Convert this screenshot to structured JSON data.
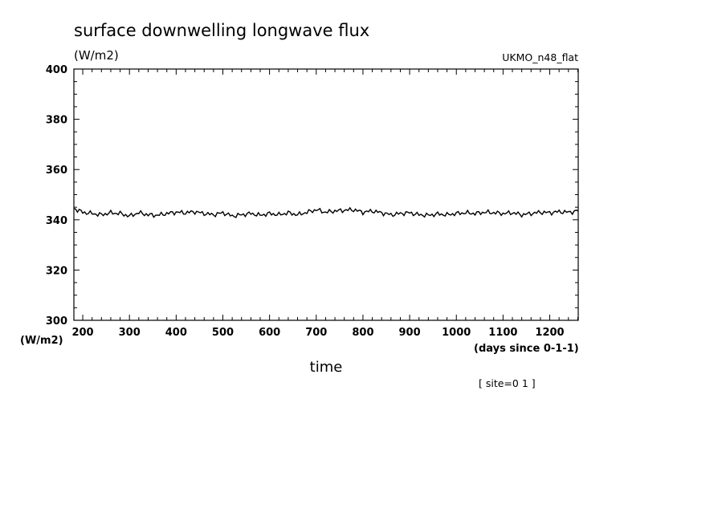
{
  "chart_data": {
    "type": "line",
    "title": "surface downwelling longwave flux",
    "units": "(W/m2)",
    "ylabel": "(W/m2)",
    "dataset": "UKMO_n48_flat",
    "xlabel": "time",
    "xunits": "(days since 0-1-1)",
    "site_label": "[ site=0 1 ]",
    "xlim": [
      181,
      1261
    ],
    "ylim": [
      300,
      400
    ],
    "x_ticks": [
      200,
      300,
      400,
      500,
      600,
      700,
      800,
      900,
      1000,
      1100,
      1200
    ],
    "y_ticks": [
      300,
      320,
      340,
      360,
      380,
      400
    ],
    "grid": false,
    "series": [
      {
        "x": [
          181,
          200,
          220,
          240,
          260,
          280,
          300,
          320,
          340,
          360,
          380,
          400,
          420,
          440,
          460,
          480,
          500,
          520,
          540,
          560,
          580,
          600,
          620,
          640,
          660,
          680,
          700,
          720,
          740,
          760,
          780,
          800,
          820,
          840,
          860,
          880,
          900,
          920,
          940,
          960,
          980,
          1000,
          1020,
          1040,
          1060,
          1080,
          1100,
          1120,
          1140,
          1160,
          1180,
          1200,
          1220,
          1240,
          1261
        ],
        "y": [
          344.5,
          343.0,
          342.5,
          342.0,
          342.8,
          342.5,
          341.5,
          342.8,
          342.0,
          341.8,
          342.5,
          343.0,
          342.8,
          343.2,
          342.5,
          342.0,
          342.8,
          341.5,
          342.0,
          342.5,
          341.8,
          342.5,
          342.0,
          342.8,
          342.0,
          343.0,
          344.0,
          343.0,
          343.5,
          343.8,
          344.0,
          343.0,
          343.5,
          342.8,
          342.0,
          342.5,
          342.8,
          342.0,
          341.8,
          342.3,
          342.0,
          342.5,
          342.8,
          342.5,
          343.0,
          342.8,
          342.5,
          342.8,
          342.0,
          342.5,
          343.0,
          342.8,
          343.2,
          343.0,
          343.5
        ]
      }
    ]
  }
}
